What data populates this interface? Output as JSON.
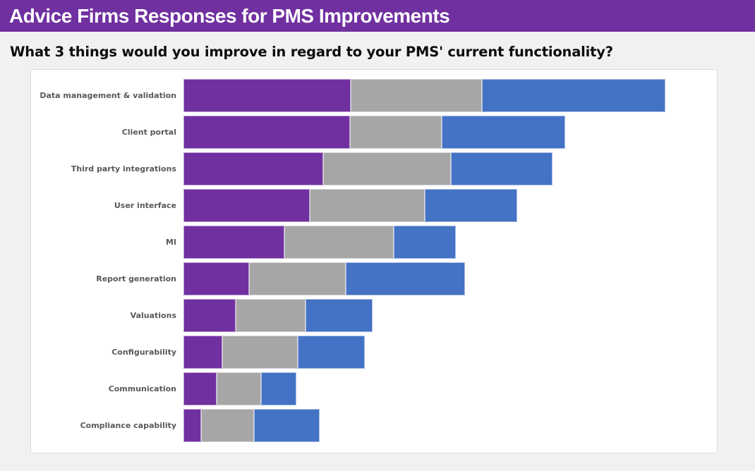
{
  "header": {
    "title": "Advice Firms Responses for PMS Improvements",
    "bg_color": "#7030A0",
    "text_color": "#FFFFFF"
  },
  "question": "What 3 things would you improve in regard to your PMS' current functionality?",
  "chart_data": {
    "type": "bar",
    "orientation": "horizontal",
    "stacked": true,
    "title": "Advice Firms Responses for PMS Improvements",
    "subtitle": "What 3 things would you improve in regard to your PMS' current functionality?",
    "xlabel": "",
    "ylabel": "",
    "grid": false,
    "legend": "none",
    "axis_labels_visible": false,
    "xlim": [
      0,
      758
    ],
    "categories": [
      "Data management & validation",
      "Client portal",
      "Third party integrations",
      "User interface",
      "MI",
      "Report generation",
      "Valuations",
      "Configurability",
      "Communication",
      "Compliance capability"
    ],
    "series": [
      {
        "name": "purple",
        "color": "#7030A0",
        "values": [
          237,
          236,
          198,
          179,
          143,
          93,
          74,
          55,
          47,
          25
        ]
      },
      {
        "name": "gray",
        "color": "#A6A6A6",
        "values": [
          186,
          130,
          181,
          163,
          155,
          137,
          99,
          107,
          63,
          75
        ]
      },
      {
        "name": "blue",
        "color": "#4472C4",
        "values": [
          260,
          175,
          144,
          131,
          88,
          169,
          95,
          95,
          50,
          93
        ]
      }
    ],
    "stack_totals": [
      683,
      541,
      523,
      473,
      386,
      399,
      268,
      257,
      160,
      193
    ]
  },
  "colors": {
    "page_background": "#F1F1F1",
    "panel_background": "#FFFFFF",
    "panel_border": "#DBDBDB",
    "category_label": "#595959",
    "question_text": "#0D0D0D"
  }
}
